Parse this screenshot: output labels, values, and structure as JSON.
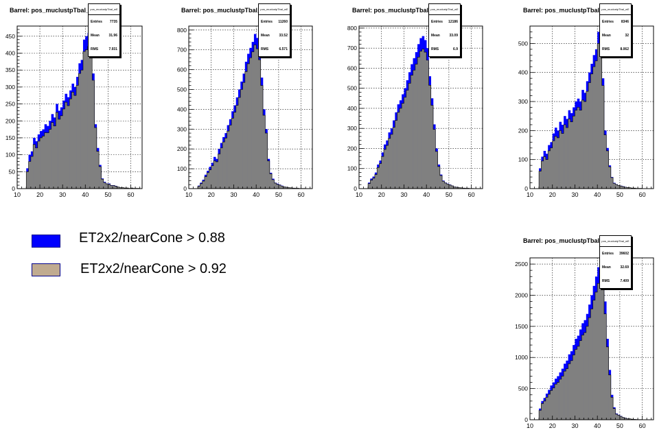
{
  "colors": {
    "loose": "#0000ff",
    "tight": "#808080",
    "legend_tight": "#c0ab90",
    "line": "#000000"
  },
  "legend": [
    {
      "label": "ET2x2/nearCone > 0.88",
      "color": "#0000ff"
    },
    {
      "label": "ET2x2/nearCone > 0.92",
      "color": "#c0ab90"
    }
  ],
  "chart_data": [
    {
      "type": "bar",
      "title": "Barrel: pos_muclustpTbal_wE",
      "stats_title": "pos_muclustpTbal_wE",
      "stats": [
        {
          "label": "Entries",
          "value": "7735"
        },
        {
          "label": "Mean",
          "value": "31.96"
        },
        {
          "label": "RMS",
          "value": "7.931"
        }
      ],
      "xlim": [
        10,
        65
      ],
      "ylim": [
        0,
        480
      ],
      "xticks": [
        10,
        20,
        30,
        40,
        50,
        60
      ],
      "yticks": [
        0,
        50,
        100,
        150,
        200,
        250,
        300,
        350,
        400,
        450
      ],
      "grid": true,
      "bin_width": 1,
      "series": [
        {
          "name": "ET2x2/nearCone > 0.88",
          "x0": 14,
          "values": [
            60,
            100,
            110,
            150,
            140,
            160,
            170,
            175,
            190,
            185,
            200,
            220,
            210,
            250,
            230,
            240,
            260,
            280,
            270,
            290,
            310,
            300,
            330,
            370,
            380,
            440,
            450,
            460,
            430,
            340,
            190,
            120,
            70,
            30,
            20,
            15,
            15,
            10,
            10,
            8,
            5,
            3,
            3,
            2,
            2,
            1,
            2,
            1,
            1,
            1,
            0
          ]
        },
        {
          "name": "ET2x2/nearCone > 0.92",
          "x0": 14,
          "values": [
            50,
            80,
            95,
            130,
            120,
            140,
            150,
            155,
            165,
            165,
            175,
            195,
            185,
            225,
            205,
            215,
            235,
            255,
            245,
            265,
            285,
            275,
            305,
            340,
            350,
            405,
            410,
            420,
            400,
            320,
            180,
            110,
            65,
            28,
            18,
            14,
            13,
            9,
            9,
            7,
            5,
            3,
            3,
            2,
            2,
            1,
            2,
            1,
            1,
            1,
            0
          ]
        }
      ]
    },
    {
      "type": "bar",
      "title": "Barrel: pos_muclustpTbal_wE",
      "stats_title": "pos_muclustpTbal_wE",
      "stats": [
        {
          "label": "Entries",
          "value": "11260"
        },
        {
          "label": "Mean",
          "value": "33.52"
        },
        {
          "label": "RMS",
          "value": "6.571"
        }
      ],
      "xlim": [
        10,
        65
      ],
      "ylim": [
        0,
        820
      ],
      "xticks": [
        10,
        20,
        30,
        40,
        50,
        60
      ],
      "yticks": [
        0,
        100,
        200,
        300,
        400,
        500,
        600,
        700,
        800
      ],
      "grid": true,
      "bin_width": 1,
      "series": [
        {
          "name": "ET2x2/nearCone > 0.88",
          "x0": 14,
          "values": [
            15,
            30,
            45,
            70,
            90,
            110,
            130,
            160,
            150,
            200,
            230,
            260,
            280,
            320,
            350,
            390,
            420,
            460,
            500,
            540,
            580,
            640,
            680,
            710,
            740,
            780,
            760,
            700,
            560,
            400,
            300,
            150,
            80,
            50,
            30,
            25,
            20,
            15,
            10,
            8,
            5,
            4,
            3,
            2,
            2,
            1,
            1,
            1,
            0,
            0,
            0
          ]
        },
        {
          "name": "ET2x2/nearCone > 0.92",
          "x0": 14,
          "values": [
            12,
            25,
            38,
            60,
            80,
            95,
            115,
            140,
            135,
            175,
            205,
            235,
            255,
            290,
            320,
            355,
            385,
            420,
            460,
            500,
            535,
            590,
            630,
            660,
            690,
            725,
            705,
            650,
            520,
            370,
            280,
            140,
            75,
            45,
            28,
            22,
            18,
            13,
            9,
            7,
            5,
            4,
            3,
            2,
            2,
            1,
            1,
            1,
            0,
            0,
            0
          ]
        }
      ]
    },
    {
      "type": "bar",
      "title": "Barrel: pos_muclustpTbal_wE",
      "stats_title": "pos_muclustpTbal_wE",
      "stats": [
        {
          "label": "Entries",
          "value": "12186"
        },
        {
          "label": "Mean",
          "value": "33.09"
        },
        {
          "label": "RMS",
          "value": "6.9"
        }
      ],
      "xlim": [
        10,
        65
      ],
      "ylim": [
        0,
        810
      ],
      "xticks": [
        10,
        20,
        30,
        40,
        50,
        60
      ],
      "yticks": [
        0,
        100,
        200,
        300,
        400,
        500,
        600,
        700,
        800
      ],
      "grid": true,
      "bin_width": 1,
      "series": [
        {
          "name": "ET2x2/nearCone > 0.88",
          "x0": 14,
          "values": [
            30,
            50,
            60,
            80,
            120,
            140,
            180,
            220,
            240,
            280,
            300,
            340,
            380,
            420,
            440,
            470,
            500,
            540,
            580,
            620,
            650,
            680,
            720,
            750,
            760,
            740,
            700,
            560,
            450,
            320,
            200,
            120,
            70,
            40,
            30,
            25,
            20,
            15,
            10,
            8,
            5,
            4,
            3,
            2,
            2,
            1,
            1,
            0,
            0,
            0,
            0
          ]
        },
        {
          "name": "ET2x2/nearCone > 0.92",
          "x0": 14,
          "values": [
            25,
            42,
            52,
            70,
            105,
            125,
            160,
            195,
            215,
            250,
            270,
            305,
            340,
            380,
            400,
            425,
            455,
            490,
            525,
            565,
            590,
            620,
            655,
            685,
            695,
            680,
            640,
            515,
            415,
            295,
            185,
            110,
            65,
            37,
            28,
            23,
            18,
            14,
            9,
            7,
            5,
            4,
            3,
            2,
            2,
            1,
            1,
            0,
            0,
            0,
            0
          ]
        }
      ]
    },
    {
      "type": "bar",
      "title": "Barrel: pos_muclustpTbal_wE",
      "stats_title": "pos_muclustpTbal_wE",
      "stats": [
        {
          "label": "Entries",
          "value": "8346"
        },
        {
          "label": "Mean",
          "value": "32"
        },
        {
          "label": "RMS",
          "value": "8.062"
        }
      ],
      "xlim": [
        10,
        65
      ],
      "ylim": [
        0,
        560
      ],
      "xticks": [
        10,
        20,
        30,
        40,
        50,
        60
      ],
      "yticks": [
        0,
        100,
        200,
        300,
        400,
        500
      ],
      "grid": true,
      "bin_width": 1,
      "series": [
        {
          "name": "ET2x2/nearCone > 0.88",
          "x0": 14,
          "values": [
            70,
            110,
            130,
            120,
            150,
            160,
            190,
            210,
            200,
            230,
            220,
            250,
            240,
            270,
            260,
            280,
            300,
            310,
            300,
            340,
            330,
            370,
            400,
            430,
            460,
            480,
            540,
            500,
            380,
            200,
            140,
            80,
            40,
            20,
            15,
            12,
            10,
            8,
            6,
            4,
            3,
            2,
            2,
            1,
            1,
            1,
            0,
            0,
            0,
            0,
            0
          ]
        },
        {
          "name": "ET2x2/nearCone > 0.92",
          "x0": 14,
          "values": [
            60,
            95,
            110,
            100,
            130,
            140,
            165,
            180,
            175,
            200,
            190,
            220,
            210,
            240,
            230,
            250,
            270,
            280,
            270,
            305,
            300,
            335,
            365,
            395,
            420,
            440,
            500,
            465,
            355,
            185,
            130,
            75,
            38,
            18,
            14,
            11,
            9,
            7,
            5,
            4,
            3,
            2,
            2,
            1,
            1,
            1,
            0,
            0,
            0,
            0,
            0
          ]
        }
      ]
    },
    {
      "type": "bar",
      "title": "Barrel: pos_muclustpTbal_wE",
      "stats_title": "pos_muclustpTbal_wE",
      "stats": [
        {
          "label": "Entries",
          "value": "39602"
        },
        {
          "label": "Mean",
          "value": "32.69"
        },
        {
          "label": "RMS",
          "value": "7.409"
        }
      ],
      "xlim": [
        10,
        65
      ],
      "ylim": [
        0,
        2600
      ],
      "xticks": [
        10,
        20,
        30,
        40,
        50,
        60
      ],
      "yticks": [
        0,
        500,
        1000,
        1500,
        2000,
        2500
      ],
      "grid": true,
      "bin_width": 1,
      "series": [
        {
          "name": "ET2x2/nearCone > 0.88",
          "x0": 14,
          "values": [
            180,
            300,
            350,
            420,
            480,
            550,
            600,
            660,
            700,
            760,
            820,
            900,
            950,
            1050,
            1100,
            1200,
            1300,
            1350,
            1450,
            1550,
            1600,
            1700,
            1850,
            2000,
            2150,
            2300,
            2450,
            2500,
            2350,
            1900,
            1300,
            800,
            400,
            200,
            100,
            80,
            60,
            40,
            30,
            20,
            15,
            10,
            8,
            5,
            4,
            3,
            2,
            1,
            1,
            1,
            0
          ]
        },
        {
          "name": "ET2x2/nearCone > 0.92",
          "x0": 14,
          "values": [
            150,
            260,
            300,
            360,
            410,
            470,
            510,
            570,
            600,
            650,
            700,
            780,
            820,
            900,
            950,
            1040,
            1130,
            1180,
            1270,
            1360,
            1400,
            1500,
            1640,
            1780,
            1920,
            2050,
            2190,
            2230,
            2100,
            1700,
            1170,
            720,
            360,
            180,
            90,
            72,
            54,
            36,
            27,
            18,
            14,
            9,
            7,
            5,
            4,
            3,
            2,
            1,
            1,
            1,
            0
          ]
        }
      ]
    }
  ]
}
